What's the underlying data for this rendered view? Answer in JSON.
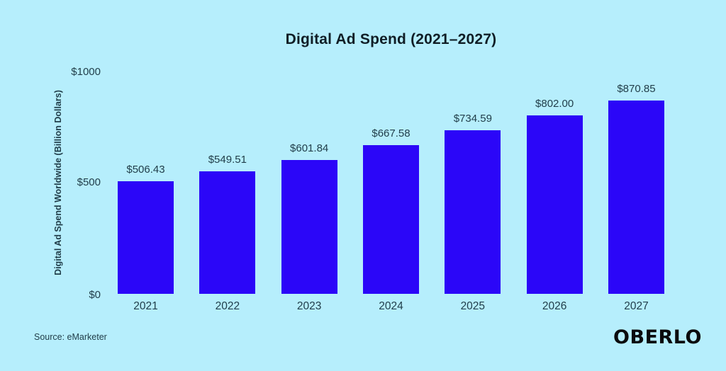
{
  "chart_data": {
    "type": "bar",
    "title": "Digital Ad Spend (2021–2027)",
    "categories": [
      "2021",
      "2022",
      "2023",
      "2024",
      "2025",
      "2026",
      "2027"
    ],
    "values": [
      506.43,
      549.51,
      601.84,
      667.58,
      734.59,
      802.0,
      870.85
    ],
    "value_labels": [
      "$506.43",
      "$549.51",
      "$601.84",
      "$667.58",
      "$734.59",
      "$802.00",
      "$870.85"
    ],
    "xlabel": "",
    "ylabel": "Digital Ad Spend Worldwide (Billion Dollars)",
    "ylim": [
      0,
      1000
    ],
    "ytick_labels": [
      "$1000",
      "$500",
      "$0"
    ],
    "grid": false,
    "legend": false,
    "bar_color": "#2B06F8",
    "background_color": "#B6EEFC",
    "title_color": "#101E26",
    "label_color": "#213E4A"
  },
  "footer": {
    "source": "Source: eMarketer",
    "brand": "OBERLO",
    "brand_color": "#0B0B0D"
  }
}
